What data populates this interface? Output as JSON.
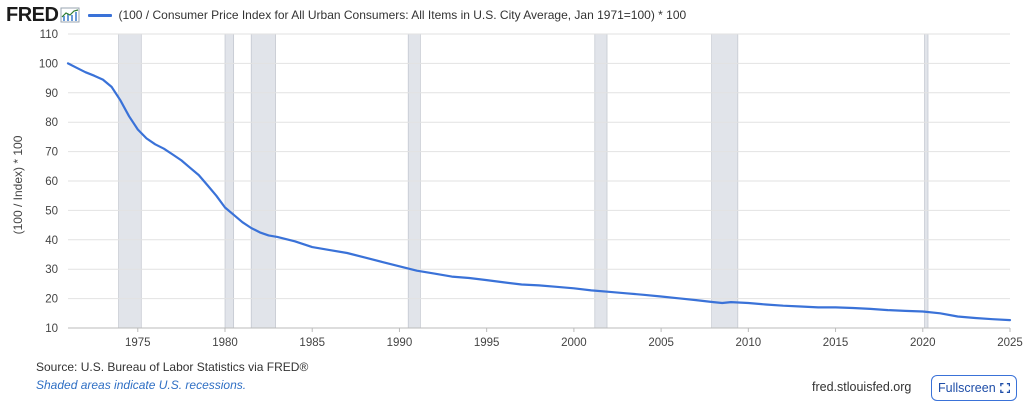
{
  "header": {
    "logo_text": "FRED",
    "legend_label": "(100 / Consumer Price Index for All Urban Consumers: All Items in U.S. City Average, Jan 1971=100) * 100"
  },
  "footer": {
    "source": "Source: U.S. Bureau of Labor Statistics via FRED®",
    "note": "Shaded areas indicate U.S. recessions.",
    "site": "fred.stlouisfed.org",
    "fullscreen_label": "Fullscreen"
  },
  "colors": {
    "line": "#3a72d8",
    "recession": "#e1e4ea",
    "grid": "#e2e2e2"
  },
  "chart_data": {
    "type": "line",
    "title": "",
    "xlabel": "",
    "ylabel": "(100 / Index) * 100",
    "xlim": [
      1971,
      2025
    ],
    "ylim": [
      10,
      110
    ],
    "x_ticks": [
      1975,
      1980,
      1985,
      1990,
      1995,
      2000,
      2005,
      2010,
      2015,
      2020,
      2025
    ],
    "y_ticks": [
      10,
      20,
      30,
      40,
      50,
      60,
      70,
      80,
      90,
      100,
      110
    ],
    "grid": true,
    "recessions": [
      {
        "start": 1973.9,
        "end": 1975.2
      },
      {
        "start": 1980.0,
        "end": 1980.5
      },
      {
        "start": 1981.5,
        "end": 1982.9
      },
      {
        "start": 1990.5,
        "end": 1991.2
      },
      {
        "start": 2001.2,
        "end": 2001.9
      },
      {
        "start": 2007.9,
        "end": 2009.4
      },
      {
        "start": 2020.1,
        "end": 2020.3
      }
    ],
    "series": [
      {
        "name": "(100 / Consumer Price Index for All Urban Consumers: All Items in U.S. City Average, Jan 1971=100) * 100",
        "x": [
          1971,
          1971.5,
          1972,
          1972.5,
          1973,
          1973.5,
          1974,
          1974.5,
          1975,
          1975.5,
          1976,
          1976.5,
          1977,
          1977.5,
          1978,
          1978.5,
          1979,
          1979.5,
          1980,
          1980.5,
          1981,
          1981.5,
          1982,
          1982.5,
          1983,
          1984,
          1985,
          1986,
          1987,
          1988,
          1989,
          1990,
          1991,
          1992,
          1993,
          1994,
          1995,
          1996,
          1997,
          1998,
          1999,
          2000,
          2001,
          2002,
          2003,
          2004,
          2005,
          2006,
          2007,
          2008,
          2008.5,
          2009,
          2010,
          2011,
          2012,
          2013,
          2014,
          2015,
          2016,
          2017,
          2018,
          2019,
          2020,
          2021,
          2022,
          2023,
          2024,
          2025
        ],
        "values": [
          100.0,
          98.5,
          97.0,
          95.8,
          94.5,
          92.0,
          87.5,
          82.0,
          77.5,
          74.5,
          72.5,
          71.0,
          69.0,
          67.0,
          64.5,
          62.0,
          58.5,
          55.0,
          51.0,
          48.5,
          46.0,
          44.0,
          42.5,
          41.5,
          41.0,
          39.5,
          37.5,
          36.5,
          35.5,
          34.0,
          32.5,
          31.0,
          29.5,
          28.5,
          27.5,
          27.0,
          26.3,
          25.5,
          24.8,
          24.5,
          24.0,
          23.5,
          22.8,
          22.3,
          21.8,
          21.3,
          20.7,
          20.1,
          19.5,
          18.8,
          18.5,
          18.8,
          18.5,
          18.0,
          17.6,
          17.3,
          17.0,
          17.0,
          16.8,
          16.5,
          16.1,
          15.8,
          15.6,
          15.0,
          13.9,
          13.4,
          13.0,
          12.7
        ]
      }
    ]
  }
}
